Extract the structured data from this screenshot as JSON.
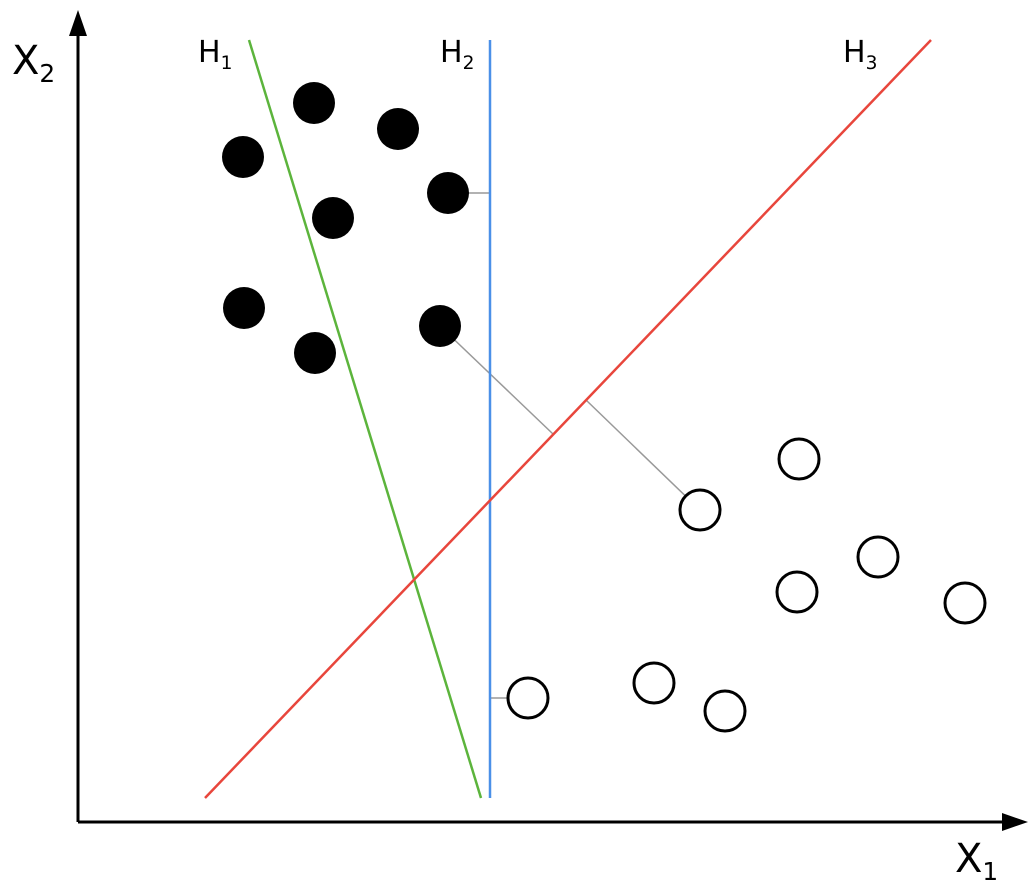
{
  "axes": {
    "y": {
      "letter": "X",
      "index": "2"
    },
    "x": {
      "letter": "X",
      "index": "1"
    }
  },
  "hyperplanes": [
    {
      "letter": "H",
      "index": "1"
    },
    {
      "letter": "H",
      "index": "2"
    },
    {
      "letter": "H",
      "index": "3"
    }
  ]
}
